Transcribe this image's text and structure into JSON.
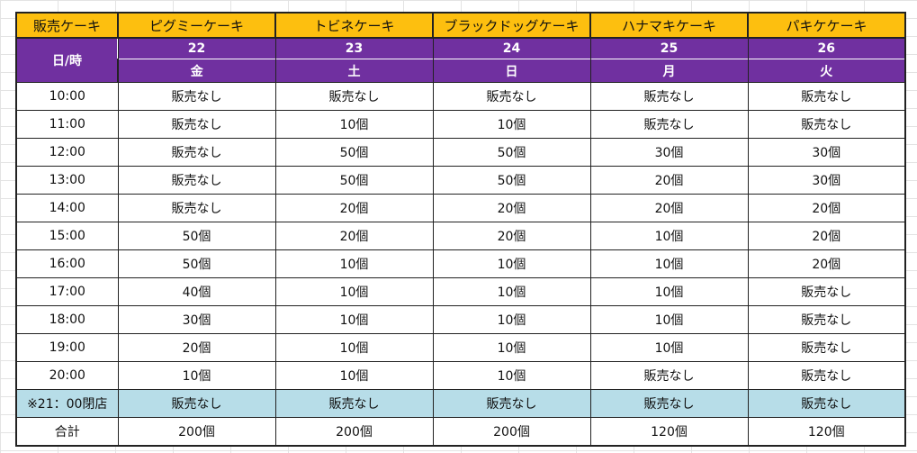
{
  "table": {
    "corner_label": "販売ケーキ",
    "daytime_label": "日/時",
    "cakes": [
      "ピグミーケーキ",
      "トビネケーキ",
      "ブラックドッグケーキ",
      "ハナマキケーキ",
      "パキケケーキ"
    ],
    "dates": [
      "22",
      "23",
      "24",
      "25",
      "26"
    ],
    "weekdays": [
      "金",
      "土",
      "日",
      "月",
      "火"
    ],
    "rows": [
      {
        "time": "10:00",
        "values": [
          "販売なし",
          "販売なし",
          "販売なし",
          "販売なし",
          "販売なし"
        ]
      },
      {
        "time": "11:00",
        "values": [
          "販売なし",
          "10個",
          "10個",
          "販売なし",
          "販売なし"
        ]
      },
      {
        "time": "12:00",
        "values": [
          "販売なし",
          "50個",
          "50個",
          "30個",
          "30個"
        ]
      },
      {
        "time": "13:00",
        "values": [
          "販売なし",
          "50個",
          "50個",
          "20個",
          "30個"
        ]
      },
      {
        "time": "14:00",
        "values": [
          "販売なし",
          "20個",
          "20個",
          "20個",
          "20個"
        ]
      },
      {
        "time": "15:00",
        "values": [
          "50個",
          "20個",
          "20個",
          "10個",
          "20個"
        ]
      },
      {
        "time": "16:00",
        "values": [
          "50個",
          "10個",
          "10個",
          "10個",
          "20個"
        ]
      },
      {
        "time": "17:00",
        "values": [
          "40個",
          "10個",
          "10個",
          "10個",
          "販売なし"
        ]
      },
      {
        "time": "18:00",
        "values": [
          "30個",
          "10個",
          "10個",
          "10個",
          "販売なし"
        ]
      },
      {
        "time": "19:00",
        "values": [
          "20個",
          "10個",
          "10個",
          "10個",
          "販売なし"
        ]
      },
      {
        "time": "20:00",
        "values": [
          "10個",
          "10個",
          "10個",
          "販売なし",
          "販売なし"
        ]
      }
    ],
    "closed_row": {
      "time": "※21：00閉店",
      "values": [
        "販売なし",
        "販売なし",
        "販売なし",
        "販売なし",
        "販売なし"
      ]
    },
    "total_row": {
      "label": "合計",
      "values": [
        "200個",
        "200個",
        "200個",
        "120個",
        "120個"
      ]
    }
  },
  "colors": {
    "header_orange": "#fdbf0f",
    "header_purple": "#7030a0",
    "closed_row_blue": "#b7dde8"
  }
}
